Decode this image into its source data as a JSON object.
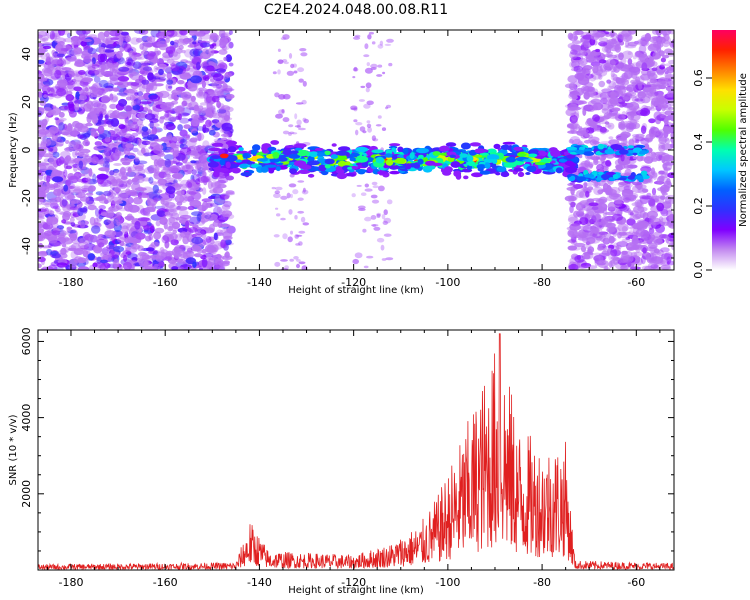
{
  "title": "C2E4.2024.048.00.08.R11",
  "chart_data": [
    {
      "type": "heatmap",
      "xlabel": "Height of straight line (km)",
      "ylabel": "Frequency (Hz)",
      "xlim": [
        -187,
        -52
      ],
      "ylim": [
        -50,
        50
      ],
      "xticks": [
        -180,
        -160,
        -140,
        -120,
        -100,
        -80,
        -60
      ],
      "yticks": [
        -40,
        -20,
        0,
        20,
        40
      ],
      "colorbar": {
        "label": "Normalized spectral amplitude",
        "range": [
          0.0,
          0.75
        ],
        "ticks": [
          0.0,
          0.2,
          0.4,
          0.6
        ],
        "colors": [
          "#ffffff",
          "#c48cf0",
          "#8000ff",
          "#3030ff",
          "#0060ff",
          "#00c8ff",
          "#00ffb0",
          "#50ff00",
          "#c8ff00",
          "#ffe000",
          "#ff8000",
          "#ff2000",
          "#ff0060"
        ]
      },
      "band": {
        "x_range": [
          -150,
          -73
        ],
        "center_hz": -4,
        "half_width_hz": 5,
        "peak_amplitude": 0.72
      },
      "noise_regions": [
        {
          "x_range": [
            -187,
            -146
          ],
          "freq_range": [
            -50,
            50
          ],
          "amplitude": 0.12
        },
        {
          "x_range": [
            -74,
            -52
          ],
          "freq_range": [
            -50,
            50
          ],
          "amplitude": 0.08
        }
      ]
    },
    {
      "type": "line",
      "xlabel": "Height of straight line (km)",
      "ylabel": "SNR (10 * v/v)",
      "xlim": [
        -187,
        -52
      ],
      "ylim": [
        0,
        6300
      ],
      "xticks": [
        -180,
        -160,
        -140,
        -120,
        -100,
        -80,
        -60
      ],
      "yticks": [
        2000,
        4000,
        6000
      ],
      "line_color": "#e02020",
      "envelope": [
        {
          "x": -187,
          "y": 150
        },
        {
          "x": -145,
          "y": 200
        },
        {
          "x": -142,
          "y": 1300
        },
        {
          "x": -138,
          "y": 500
        },
        {
          "x": -120,
          "y": 400
        },
        {
          "x": -112,
          "y": 700
        },
        {
          "x": -106,
          "y": 1200
        },
        {
          "x": -102,
          "y": 2000
        },
        {
          "x": -98,
          "y": 3200
        },
        {
          "x": -94,
          "y": 4500
        },
        {
          "x": -89,
          "y": 6200
        },
        {
          "x": -85,
          "y": 3800
        },
        {
          "x": -80,
          "y": 3300
        },
        {
          "x": -75,
          "y": 3400
        },
        {
          "x": -73,
          "y": 250
        },
        {
          "x": -52,
          "y": 180
        }
      ]
    }
  ]
}
